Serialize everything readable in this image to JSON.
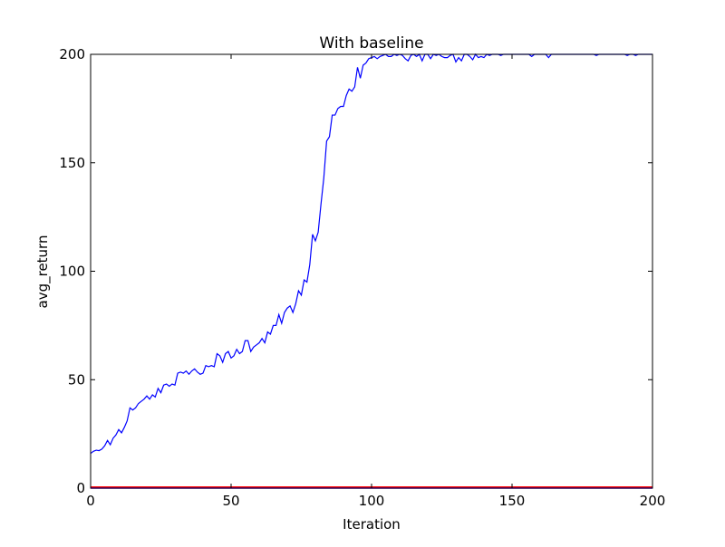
{
  "chart_data": {
    "type": "line",
    "title": "With baseline",
    "xlabel": "Iteration",
    "ylabel": "avg_return",
    "xlim": [
      0,
      200
    ],
    "ylim": [
      0,
      200
    ],
    "xticks": [
      "0",
      "50",
      "100",
      "150",
      "200"
    ],
    "yticks": [
      "0",
      "50",
      "100",
      "150",
      "200"
    ],
    "grid": false,
    "legend": "none",
    "series": [
      {
        "color": "#0000ff",
        "points": [
          [
            0,
            16
          ],
          [
            1,
            17
          ],
          [
            2,
            17.5
          ],
          [
            3,
            17.3
          ],
          [
            4,
            18
          ],
          [
            5,
            19.5
          ],
          [
            6,
            22
          ],
          [
            7,
            20
          ],
          [
            8,
            23
          ],
          [
            9,
            24.5
          ],
          [
            10,
            27
          ],
          [
            11,
            25.5
          ],
          [
            12,
            28
          ],
          [
            13,
            31
          ],
          [
            14,
            37
          ],
          [
            15,
            36
          ],
          [
            16,
            37
          ],
          [
            17,
            39
          ],
          [
            18,
            40
          ],
          [
            19,
            41
          ],
          [
            20,
            42.5
          ],
          [
            21,
            41
          ],
          [
            22,
            43
          ],
          [
            23,
            42
          ],
          [
            24,
            46
          ],
          [
            25,
            44
          ],
          [
            26,
            47.5
          ],
          [
            27,
            48
          ],
          [
            28,
            47
          ],
          [
            29,
            48
          ],
          [
            30,
            47.5
          ],
          [
            31,
            53
          ],
          [
            32,
            53.5
          ],
          [
            33,
            53
          ],
          [
            34,
            54
          ],
          [
            35,
            52.5
          ],
          [
            36,
            54
          ],
          [
            37,
            55
          ],
          [
            38,
            53.5
          ],
          [
            39,
            52.5
          ],
          [
            40,
            53
          ],
          [
            41,
            56.5
          ],
          [
            42,
            56
          ],
          [
            43,
            56.5
          ],
          [
            44,
            56
          ],
          [
            45,
            62
          ],
          [
            46,
            61
          ],
          [
            47,
            58
          ],
          [
            48,
            62
          ],
          [
            49,
            63
          ],
          [
            50,
            60
          ],
          [
            51,
            61
          ],
          [
            52,
            64
          ],
          [
            53,
            62
          ],
          [
            54,
            63
          ],
          [
            55,
            68
          ],
          [
            56,
            68
          ],
          [
            57,
            63
          ],
          [
            58,
            65
          ],
          [
            59,
            66
          ],
          [
            60,
            67
          ],
          [
            61,
            69
          ],
          [
            62,
            67
          ],
          [
            63,
            72
          ],
          [
            64,
            71
          ],
          [
            65,
            75
          ],
          [
            66,
            75
          ],
          [
            67,
            80
          ],
          [
            68,
            76
          ],
          [
            69,
            81
          ],
          [
            70,
            83
          ],
          [
            71,
            84
          ],
          [
            72,
            81
          ],
          [
            73,
            85
          ],
          [
            74,
            91
          ],
          [
            75,
            89
          ],
          [
            76,
            96
          ],
          [
            77,
            95
          ],
          [
            78,
            103
          ],
          [
            79,
            117
          ],
          [
            80,
            114
          ],
          [
            81,
            118
          ],
          [
            82,
            131
          ],
          [
            83,
            143
          ],
          [
            84,
            160
          ],
          [
            85,
            162
          ],
          [
            86,
            172
          ],
          [
            87,
            172
          ],
          [
            88,
            175
          ],
          [
            89,
            176
          ],
          [
            90,
            176
          ],
          [
            91,
            181
          ],
          [
            92,
            184
          ],
          [
            93,
            183
          ],
          [
            94,
            185
          ],
          [
            95,
            194
          ],
          [
            96,
            189
          ],
          [
            97,
            195
          ],
          [
            98,
            196
          ],
          [
            99,
            198
          ],
          [
            100,
            198.5
          ],
          [
            101,
            199
          ],
          [
            102,
            198
          ],
          [
            103,
            199
          ],
          [
            104,
            199.5
          ],
          [
            105,
            200
          ],
          [
            106,
            199
          ],
          [
            107,
            199
          ],
          [
            108,
            200
          ],
          [
            109,
            199.5
          ],
          [
            110,
            200
          ],
          [
            111,
            199.5
          ],
          [
            112,
            198
          ],
          [
            113,
            197
          ],
          [
            114,
            199.5
          ],
          [
            115,
            200
          ],
          [
            116,
            199
          ],
          [
            117,
            200
          ],
          [
            118,
            197
          ],
          [
            119,
            200
          ],
          [
            120,
            200
          ],
          [
            121,
            198
          ],
          [
            122,
            200
          ],
          [
            123,
            199.5
          ],
          [
            124,
            200
          ],
          [
            125,
            199
          ],
          [
            126,
            198.5
          ],
          [
            127,
            198.5
          ],
          [
            128,
            199.5
          ],
          [
            129,
            200
          ],
          [
            130,
            196.5
          ],
          [
            131,
            198.5
          ],
          [
            132,
            197
          ],
          [
            133,
            200
          ],
          [
            134,
            200
          ],
          [
            135,
            199
          ],
          [
            136,
            197.5
          ],
          [
            137,
            200
          ],
          [
            138,
            198.5
          ],
          [
            139,
            199
          ],
          [
            140,
            198.5
          ],
          [
            141,
            200
          ],
          [
            142,
            199.5
          ],
          [
            143,
            200
          ],
          [
            144,
            200
          ],
          [
            145,
            200
          ],
          [
            146,
            199.5
          ],
          [
            147,
            200
          ],
          [
            148,
            200
          ],
          [
            149,
            200
          ],
          [
            150,
            200
          ],
          [
            151,
            200
          ],
          [
            152,
            200
          ],
          [
            153,
            200
          ],
          [
            154,
            200
          ],
          [
            155,
            200
          ],
          [
            156,
            200
          ],
          [
            157,
            199
          ],
          [
            158,
            200
          ],
          [
            159,
            200
          ],
          [
            160,
            200
          ],
          [
            161,
            200
          ],
          [
            162,
            200
          ],
          [
            163,
            198.5
          ],
          [
            164,
            200
          ],
          [
            165,
            200
          ],
          [
            166,
            200
          ],
          [
            167,
            200
          ],
          [
            168,
            200
          ],
          [
            169,
            200
          ],
          [
            170,
            200
          ],
          [
            171,
            200
          ],
          [
            172,
            200
          ],
          [
            173,
            200
          ],
          [
            174,
            200
          ],
          [
            175,
            200
          ],
          [
            176,
            200
          ],
          [
            177,
            200
          ],
          [
            178,
            200
          ],
          [
            179,
            200
          ],
          [
            180,
            199.5
          ],
          [
            181,
            200
          ],
          [
            182,
            200
          ],
          [
            183,
            200
          ],
          [
            184,
            200
          ],
          [
            185,
            200
          ],
          [
            186,
            200
          ],
          [
            187,
            200
          ],
          [
            188,
            200
          ],
          [
            189,
            200
          ],
          [
            190,
            200
          ],
          [
            191,
            199.5
          ],
          [
            192,
            200
          ],
          [
            193,
            200
          ],
          [
            194,
            199.5
          ],
          [
            195,
            200
          ],
          [
            196,
            200
          ],
          [
            197,
            200
          ],
          [
            198,
            200
          ],
          [
            199,
            200
          ],
          [
            200,
            200
          ]
        ]
      },
      {
        "color": "#ff0000",
        "points": [
          [
            0,
            0.5
          ],
          [
            200,
            0.5
          ]
        ]
      },
      {
        "color": "#7f00ff",
        "points": [
          [
            0,
            0
          ],
          [
            200,
            0
          ]
        ]
      }
    ]
  }
}
